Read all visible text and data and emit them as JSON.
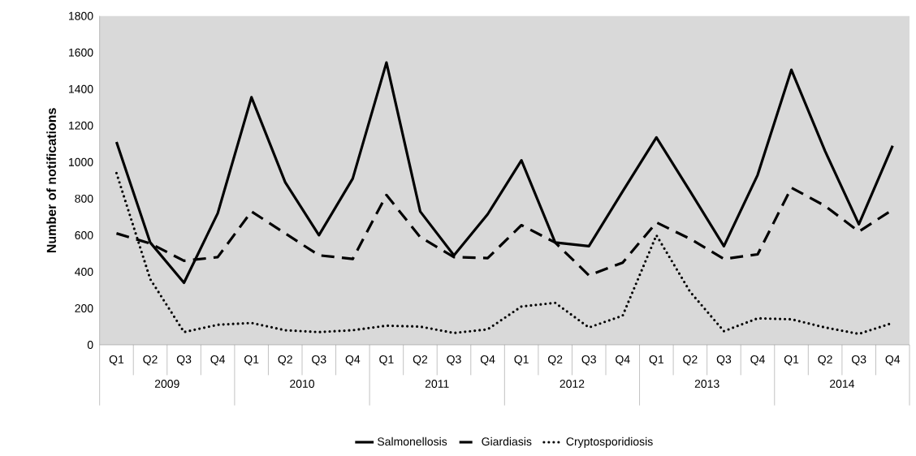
{
  "chart_data": {
    "type": "line",
    "ylabel": "Number of notifications",
    "categories": [
      "Q1",
      "Q2",
      "Q3",
      "Q4",
      "Q1",
      "Q2",
      "Q3",
      "Q4",
      "Q1",
      "Q2",
      "Q3",
      "Q4",
      "Q1",
      "Q2",
      "Q3",
      "Q4",
      "Q1",
      "Q2",
      "Q3",
      "Q4",
      "Q1",
      "Q2",
      "Q3",
      "Q4"
    ],
    "annotations": [
      "2009",
      "2010",
      "2011",
      "2012",
      "2013",
      "2014"
    ],
    "series": [
      {
        "name": "Salmonellosis",
        "color": "#000000",
        "line_style": "solid",
        "values": [
          1110,
          560,
          340,
          720,
          1355,
          890,
          600,
          910,
          1545,
          730,
          490,
          715,
          1010,
          560,
          540,
          840,
          1135,
          840,
          540,
          930,
          1505,
          1060,
          660,
          1090
        ]
      },
      {
        "name": "Giardiasis",
        "color": "#000000",
        "line_style": "dashed",
        "values": [
          610,
          555,
          460,
          480,
          730,
          610,
          490,
          470,
          820,
          590,
          480,
          475,
          655,
          560,
          380,
          450,
          670,
          580,
          470,
          495,
          860,
          760,
          620,
          740
        ]
      },
      {
        "name": "Cryptosporidiosis",
        "color": "#000000",
        "line_style": "dotted",
        "values": [
          940,
          360,
          70,
          110,
          120,
          80,
          70,
          80,
          105,
          100,
          65,
          85,
          210,
          230,
          95,
          160,
          600,
          290,
          75,
          145,
          140,
          95,
          60,
          120
        ]
      }
    ],
    "ylim": [
      0,
      1800
    ],
    "yticks": [
      0,
      200,
      400,
      600,
      800,
      1000,
      1200,
      1400,
      1600,
      1800
    ],
    "legend": "bottom",
    "marker": "none",
    "grid": false
  }
}
